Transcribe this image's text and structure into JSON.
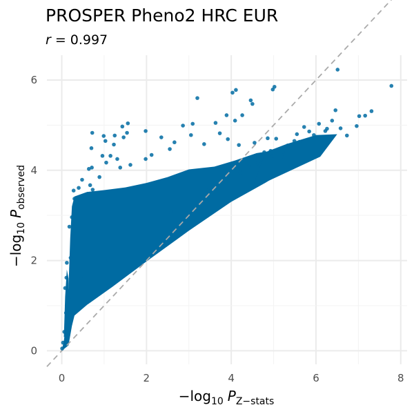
{
  "chart_data": {
    "type": "scatter",
    "title": "PROSPER Pheno2 HRC EUR",
    "subtitle": {
      "var": "r",
      "op": "=",
      "value": "0.997"
    },
    "xlabel": {
      "prefix": "−log",
      "sub1": "10",
      "var": "P",
      "sub2": "Z−stats"
    },
    "ylabel": {
      "prefix": "−log",
      "sub1": "10",
      "var": "P",
      "sub2": "observed"
    },
    "xlim": [
      -0.35,
      8.15
    ],
    "ylim": [
      -0.3,
      6.55
    ],
    "x_ticks": [
      0,
      2,
      4,
      6,
      8
    ],
    "y_ticks": [
      0,
      2,
      4,
      6
    ],
    "grid": true,
    "point_color": "#006BA2",
    "reference_line": {
      "slope": 1,
      "intercept": 0,
      "style": "dashed",
      "color": "#AAAAAA"
    },
    "series": [
      {
        "points": [
          [
            7.78,
            5.87
          ],
          [
            7.31,
            5.31
          ],
          [
            7.16,
            5.21
          ],
          [
            6.96,
            4.98
          ],
          [
            6.73,
            4.77
          ],
          [
            6.58,
            4.93
          ],
          [
            6.46,
            5.33
          ],
          [
            6.51,
            6.23
          ],
          [
            6.22,
            4.87
          ],
          [
            6.07,
            5.03
          ],
          [
            5.95,
            4.78
          ],
          [
            5.72,
            4.96
          ],
          [
            5.61,
            4.63
          ],
          [
            5.48,
            4.51
          ],
          [
            5.33,
            4.55
          ],
          [
            5.21,
            4.41
          ],
          [
            5.06,
            4.7
          ],
          [
            4.98,
            4.32
          ],
          [
            4.93,
            4.43
          ],
          [
            4.78,
            4.4
          ],
          [
            4.63,
            4.16
          ],
          [
            4.41,
            4.08
          ],
          [
            5.02,
            5.85
          ],
          [
            4.98,
            5.79
          ],
          [
            4.5,
            5.47
          ],
          [
            4.46,
            5.55
          ],
          [
            4.03,
            5.72
          ],
          [
            4.11,
            5.78
          ],
          [
            3.2,
            5.6
          ],
          [
            1.43,
            4.97
          ],
          [
            1.56,
            5.04
          ],
          [
            1.54,
            4.83
          ],
          [
            1.25,
            4.77
          ],
          [
            1.46,
            4.73
          ],
          [
            1.23,
            4.57
          ],
          [
            2.86,
            4.99
          ],
          [
            3.09,
            5.03
          ],
          [
            3.63,
            5.05
          ],
          [
            3.89,
            5.22
          ],
          [
            4.26,
            5.22
          ],
          [
            4.09,
            5.1
          ],
          [
            1.98,
            4.87
          ],
          [
            2.35,
            4.73
          ],
          [
            0.72,
            4.83
          ],
          [
            0.99,
            4.76
          ],
          [
            1.03,
            4.65
          ],
          [
            0.7,
            4.49
          ],
          [
            0.96,
            4.32
          ],
          [
            1.15,
            4.32
          ],
          [
            0.64,
            4.03
          ],
          [
            0.71,
            4.06
          ],
          [
            1.31,
            4.25
          ],
          [
            1.05,
            4.17
          ],
          [
            0.67,
            3.67
          ],
          [
            0.73,
            3.57
          ],
          [
            0.51,
            3.44
          ],
          [
            0.28,
            3.55
          ],
          [
            0.3,
            3.37
          ],
          [
            0.16,
            1.16
          ],
          [
            0.14,
            1.32
          ],
          [
            0.1,
            0.84
          ],
          [
            0.08,
            1.39
          ],
          [
            0.26,
            2.31
          ],
          [
            0.21,
            2.06
          ],
          [
            0.4,
            3.61
          ],
          [
            0.48,
            3.79
          ],
          [
            0.89,
            3.85
          ],
          [
            1.38,
            4.06
          ],
          [
            1.62,
            4.12
          ],
          [
            1.98,
            4.25
          ],
          [
            2.12,
            4.34
          ],
          [
            2.55,
            4.47
          ],
          [
            2.66,
            4.62
          ],
          [
            3.05,
            4.78
          ],
          [
            3.36,
            4.58
          ],
          [
            3.73,
            4.82
          ],
          [
            3.92,
            4.69
          ],
          [
            4.18,
            4.56
          ],
          [
            4.55,
            4.61
          ],
          [
            4.86,
            4.71
          ],
          [
            0.18,
            2.75
          ],
          [
            0.24,
            2.96
          ],
          [
            0.12,
            1.95
          ],
          [
            0.11,
            1.62
          ],
          [
            0.06,
            0.42
          ],
          [
            0.12,
            0.88
          ],
          [
            0.03,
            0.18
          ],
          [
            0.01,
            0.05
          ],
          [
            0.45,
            1.6
          ],
          [
            1.1,
            2.02
          ],
          [
            2.58,
            3.07
          ],
          [
            3.45,
            3.55
          ],
          [
            4.22,
            3.95
          ],
          [
            5.49,
            4.65
          ],
          [
            6.38,
            5.1
          ],
          [
            6.26,
            4.92
          ],
          [
            5.84,
            4.86
          ],
          [
            7.02,
            5.2
          ],
          [
            5.25,
            4.29
          ],
          [
            5.55,
            4.8
          ]
        ]
      }
    ]
  }
}
